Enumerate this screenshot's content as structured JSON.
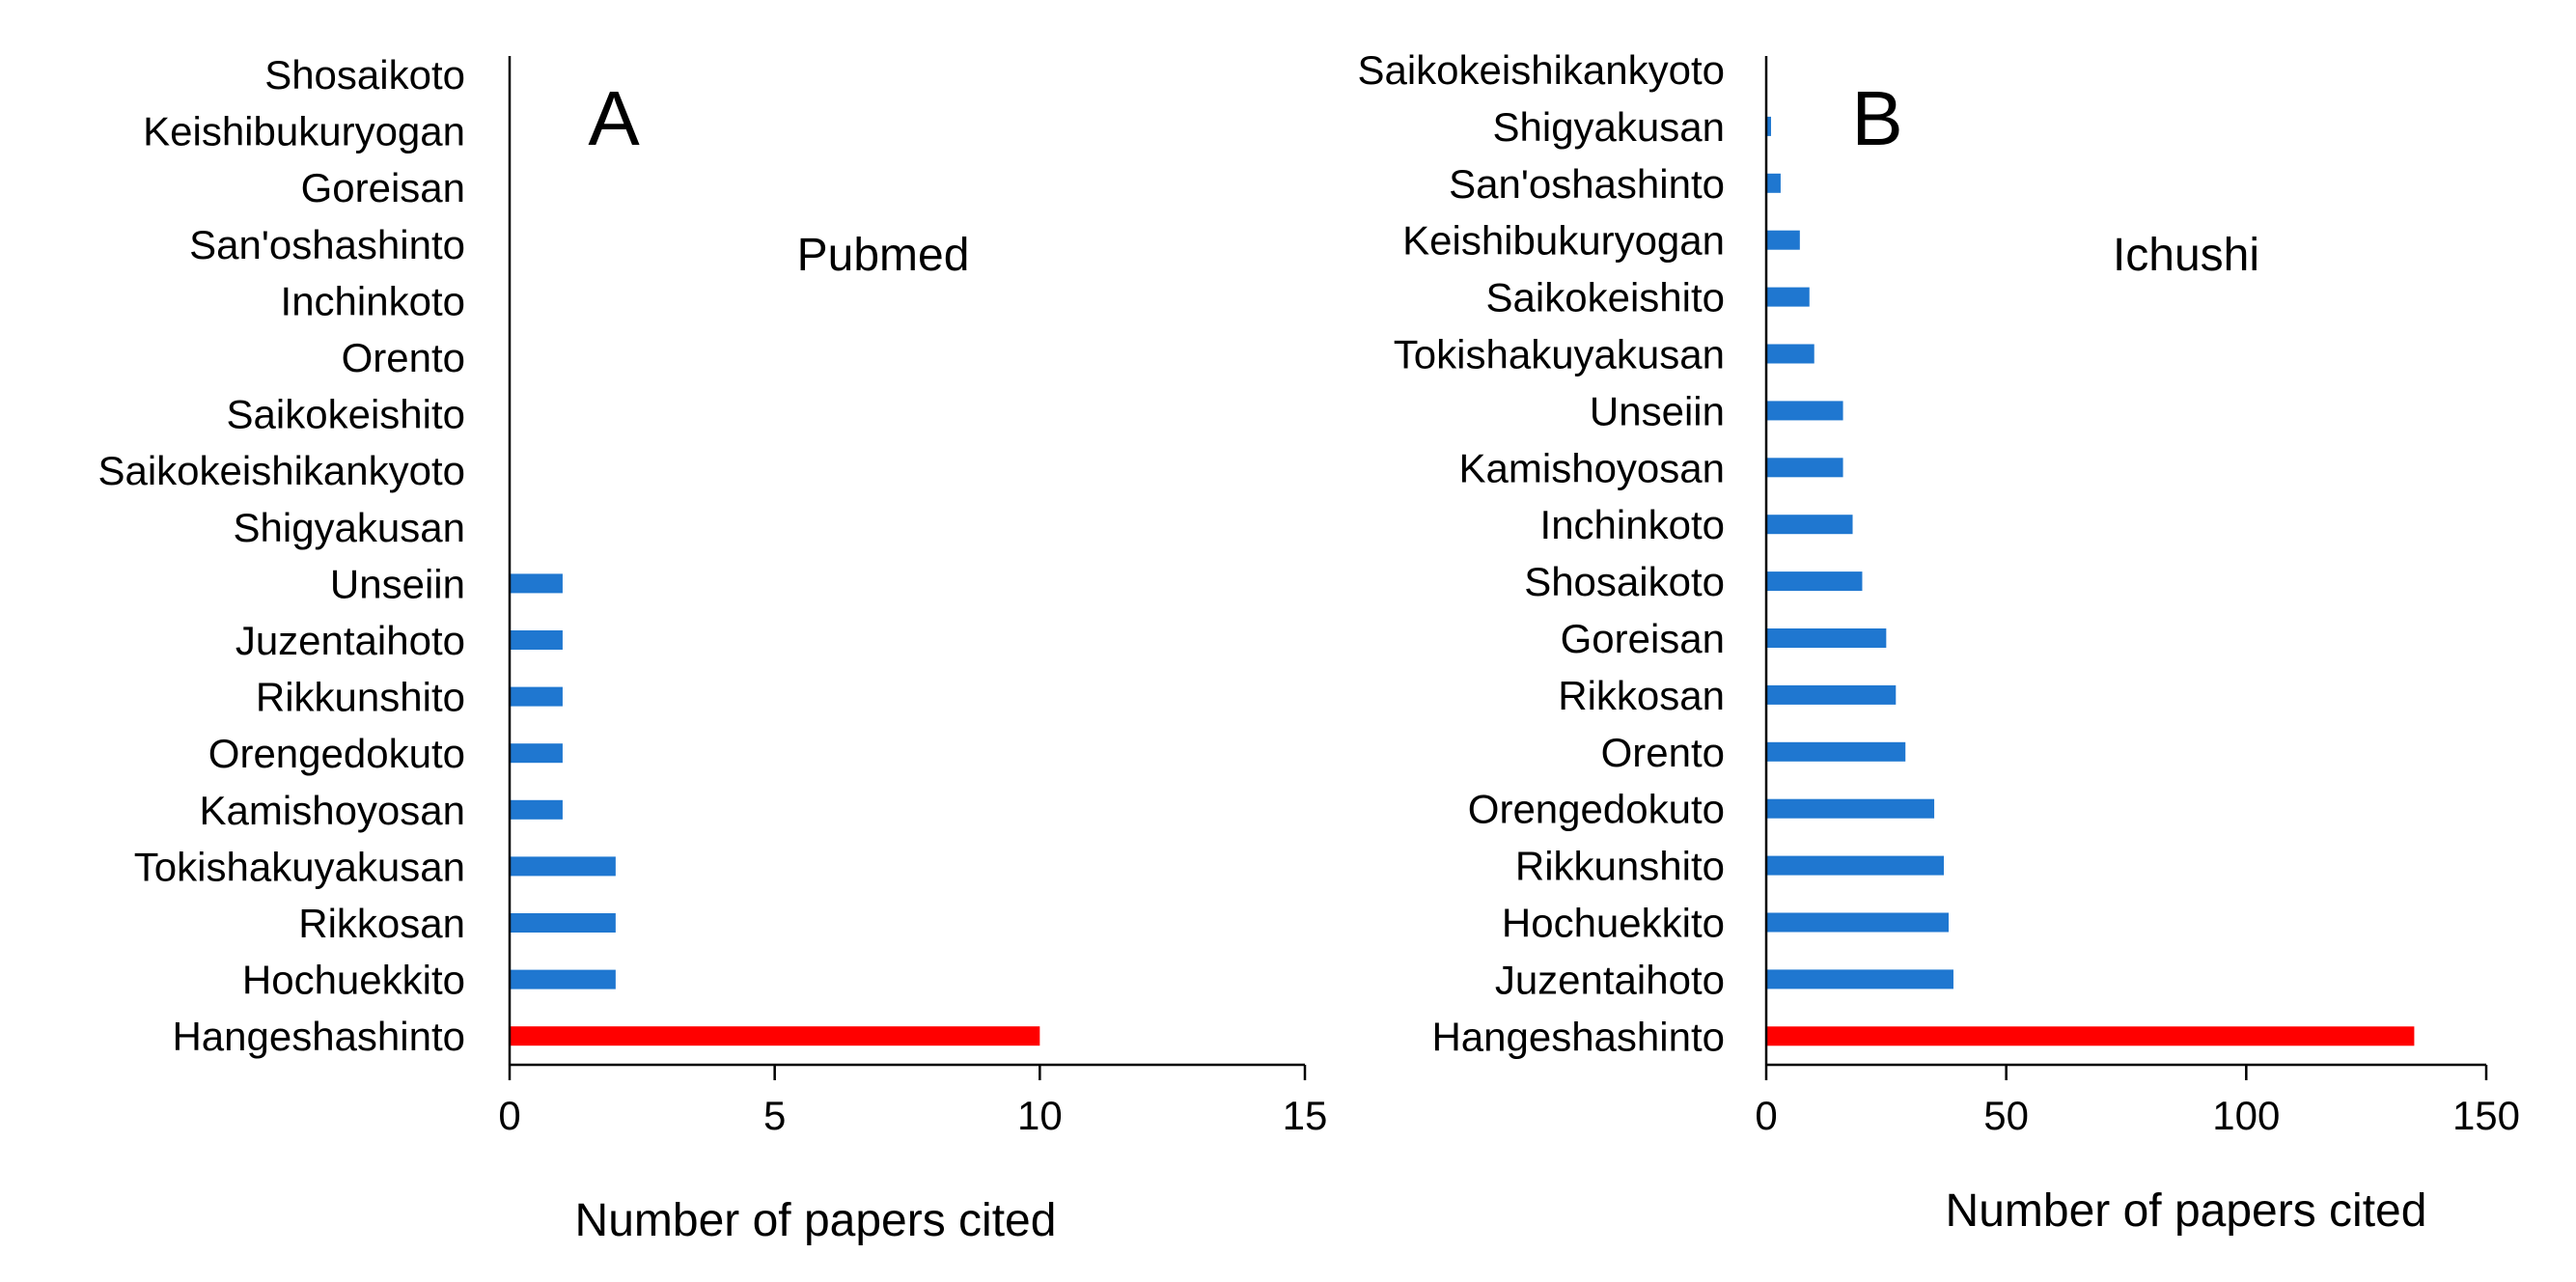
{
  "chart_data": [
    {
      "type": "bar",
      "orientation": "horizontal",
      "panel_label": "A",
      "database": "Pubmed",
      "xlabel": "Number of papers cited",
      "xlim": [
        0,
        15
      ],
      "xticks": [
        "0",
        "5",
        "10",
        "15"
      ],
      "categories": [
        "Shosaikoto",
        "Keishibukuryogan",
        "Goreisan",
        "San'oshashinto",
        "Inchinkoto",
        "Orento",
        "Saikokeishito",
        "Saikokeishikankyoto",
        "Shigyakusan",
        "Unseiin",
        "Juzentaihoto",
        "Rikkunshito",
        "Orengedokuto",
        "Kamishoyosan",
        "Tokishakuyakusan",
        "Rikkosan",
        "Hochuekkito",
        "Hangeshashinto"
      ],
      "values": [
        0,
        0,
        0,
        0,
        0,
        0,
        0,
        0,
        0,
        1,
        1,
        1,
        1,
        1,
        2,
        2,
        2,
        10
      ],
      "highlight_category": "Hangeshashinto",
      "bar_color": "#1f77d0",
      "highlight_color": "#ff0000"
    },
    {
      "type": "bar",
      "orientation": "horizontal",
      "panel_label": "B",
      "database": "Ichushi",
      "xlabel": "Number of papers cited",
      "xlim": [
        0,
        150
      ],
      "xticks": [
        "0",
        "50",
        "100",
        "150"
      ],
      "categories": [
        "Saikokeishikankyoto",
        "Shigyakusan",
        "San'oshashinto",
        "Keishibukuryogan",
        "Saikokeishito",
        "Tokishakuyakusan",
        "Unseiin",
        "Kamishoyosan",
        "Inchinkoto",
        "Shosaikoto",
        "Goreisan",
        "Rikkosan",
        "Orento",
        "Orengedokuto",
        "Rikkunshito",
        "Hochuekkito",
        "Juzentaihoto",
        "Hangeshashinto"
      ],
      "values": [
        0,
        1,
        3,
        7,
        9,
        10,
        16,
        16,
        18,
        20,
        25,
        27,
        29,
        35,
        37,
        38,
        39,
        135
      ],
      "highlight_category": "Hangeshashinto",
      "bar_color": "#1f77d0",
      "highlight_color": "#ff0000"
    }
  ]
}
